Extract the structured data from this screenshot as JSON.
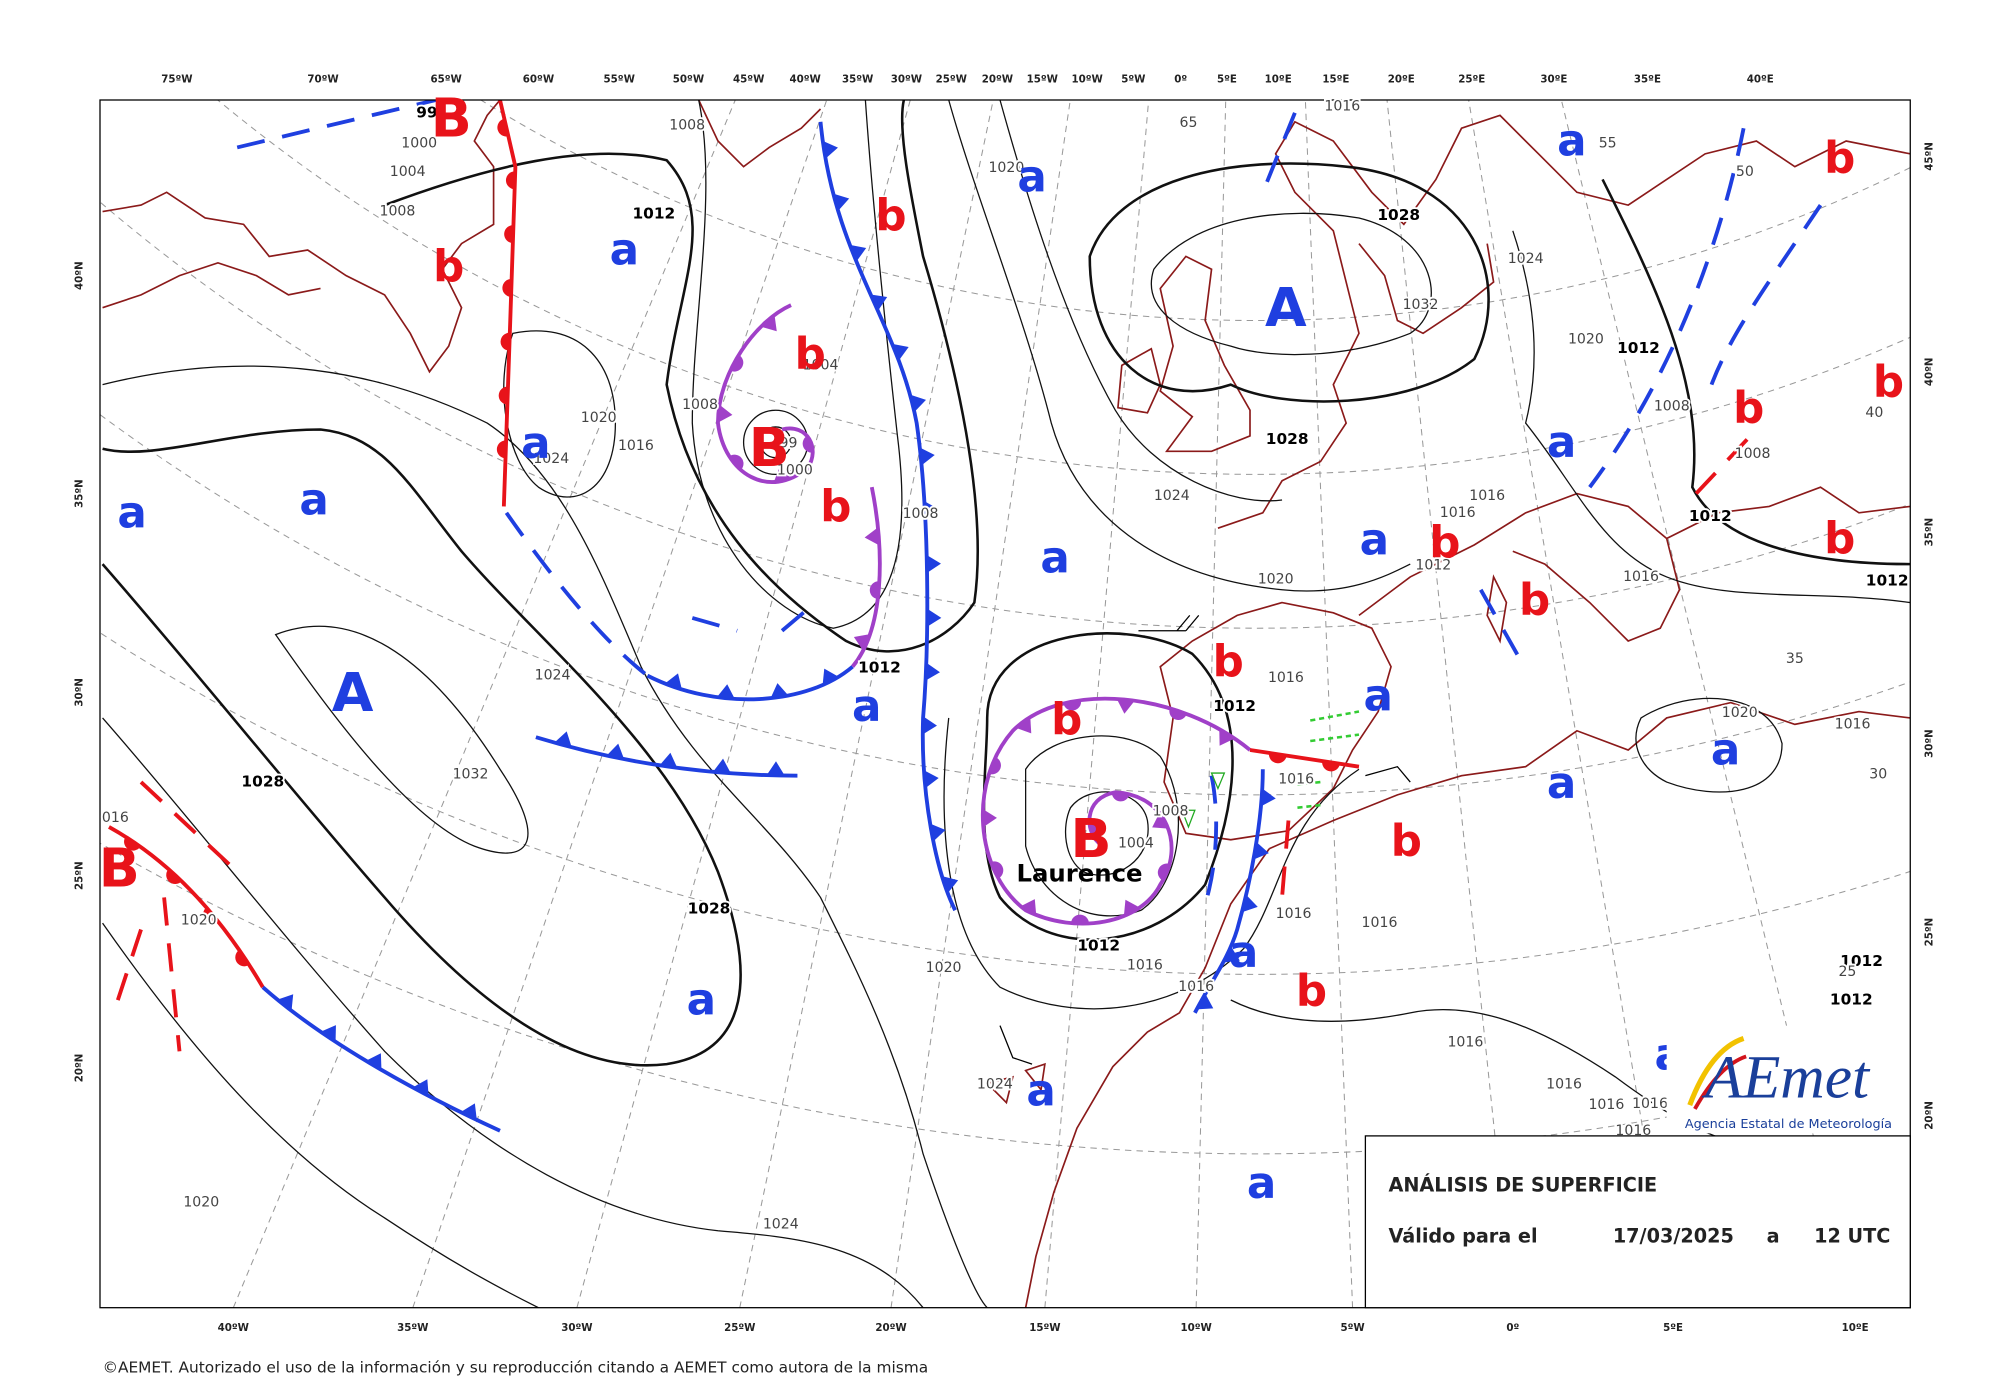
{
  "top_longitudes": [
    "75ºW",
    "70ºW",
    "65ºW",
    "60ºW",
    "55ºW",
    "50ºW",
    "45ºW",
    "40ºW",
    "35ºW",
    "30ºW",
    "25ºW",
    "20ºW",
    "15ºW",
    "10ºW",
    "5ºW",
    "0º",
    "5ºE",
    "10ºE",
    "15ºE",
    "20ºE",
    "25ºE",
    "30ºE",
    "35ºE",
    "40ºE"
  ],
  "bottom_longitudes": [
    "40ºW",
    "35ºW",
    "30ºW",
    "25ºW",
    "20ºW",
    "15ºW",
    "10ºW",
    "5ºW",
    "0º",
    "5ºE",
    "10ºE"
  ],
  "left_latitudes": [
    "40ºN",
    "35ºN",
    "30ºN",
    "25ºN",
    "20ºN"
  ],
  "right_latitudes": [
    "45ºN",
    "40ºN",
    "35ºN",
    "30ºN",
    "25ºN",
    "20ºN"
  ],
  "systems": [
    "B",
    "b",
    "a",
    "a",
    "a",
    "a",
    "A",
    "B",
    "b",
    "a",
    "b",
    "B",
    "b",
    "a",
    "a",
    "b",
    "B",
    "b",
    "A",
    "a",
    "b",
    "b",
    "b",
    "a",
    "b",
    "a",
    "b",
    "b",
    "a",
    "a",
    "a",
    "b",
    "a",
    "b",
    "a",
    "a",
    "a",
    "a"
  ],
  "storm_name": "Laurence",
  "pressure_labels": [
    "99",
    "1000",
    "1004",
    "1008",
    "1012",
    "1020",
    "1016",
    "1024",
    "1024",
    "1032",
    "1028",
    "1028",
    "1020",
    "016",
    "1020",
    "1024",
    "1020",
    "1024",
    "1012",
    "1016",
    "1016",
    "1004",
    "1008",
    "1012",
    "1016",
    "1016",
    "1016",
    "1016",
    "1012",
    "1008",
    "1008",
    "1004",
    "1000",
    "99",
    "1008",
    "1020",
    "1024",
    "1028",
    "1028",
    "1032",
    "1024",
    "1020",
    "1016",
    "1012",
    "1008",
    "1008",
    "1012",
    "1016",
    "1016",
    "1012",
    "1020",
    "1016",
    "1012",
    "1020",
    "1016",
    "1016",
    "1016",
    "1016",
    "1016",
    "1016",
    "1012",
    "1012",
    "65",
    "55",
    "50",
    "40",
    "35",
    "30",
    "25"
  ],
  "panel": {
    "title": "ANÁLISIS DE SUPERFICIE",
    "valid_label": "Válido para el",
    "date": "17/03/2025",
    "at": "a",
    "time": "12 UTC"
  },
  "logo": {
    "name": "AEmet",
    "subtitle": "Agencia Estatal de Meteorología"
  },
  "copyright": "©AEMET. Autorizado el uso de la información y su reproducción citando a AEMET como autora de la misma"
}
